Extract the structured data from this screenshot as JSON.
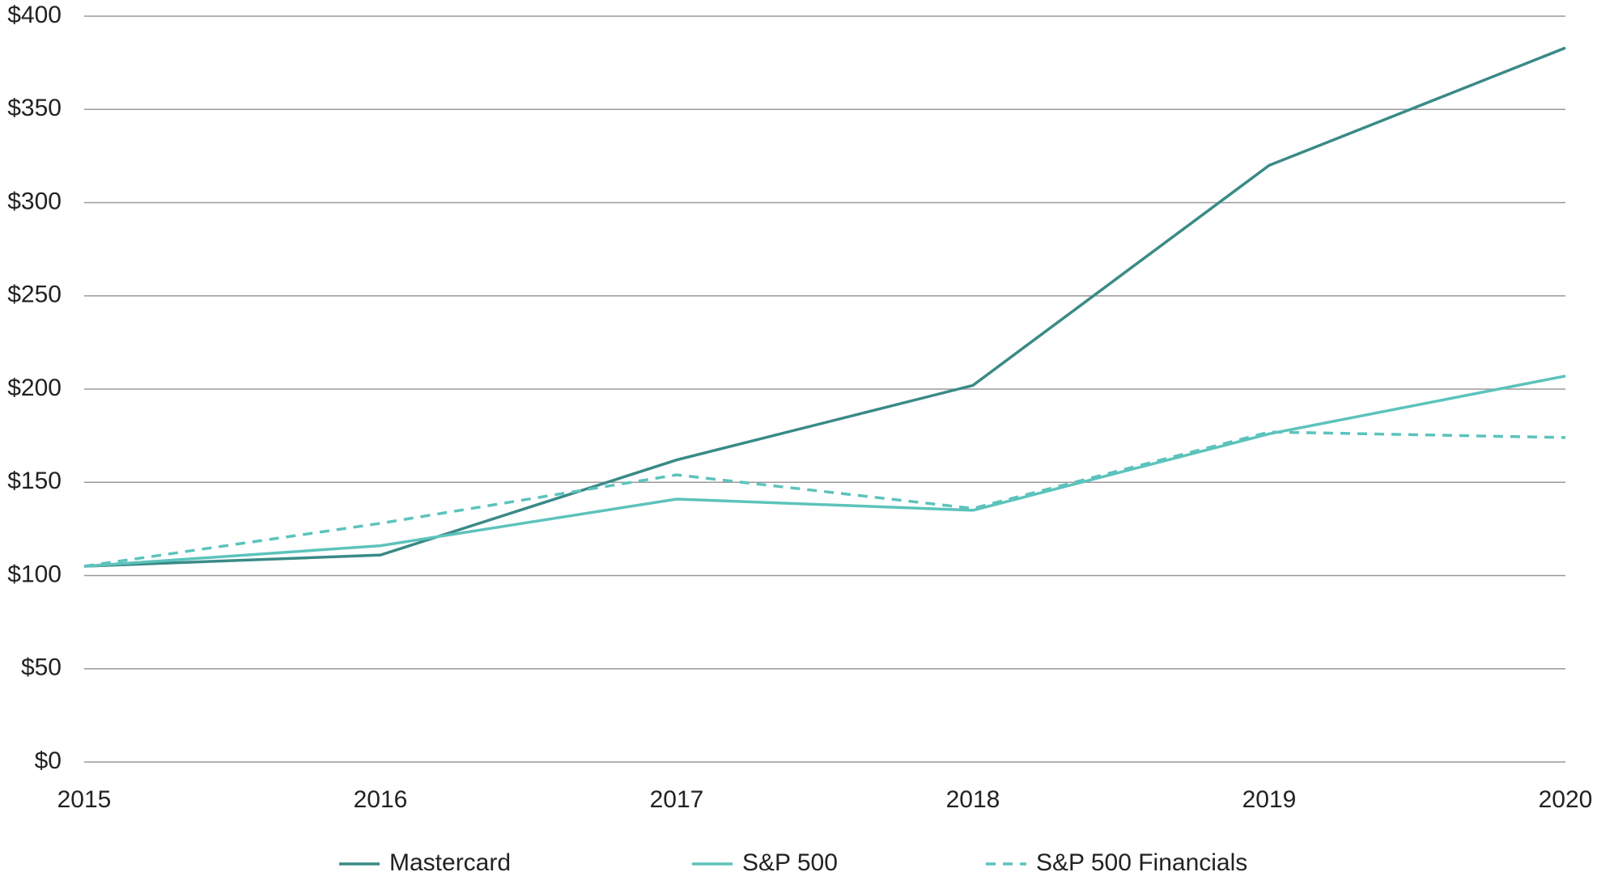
{
  "chart_data": {
    "type": "line",
    "x": [
      2015,
      2016,
      2017,
      2018,
      2019,
      2020
    ],
    "xlim": [
      2015,
      2020
    ],
    "xticks": [
      2015,
      2016,
      2017,
      2018,
      2019,
      2020
    ],
    "ylim": [
      0,
      400
    ],
    "yticks": [
      {
        "value": 0,
        "label": "$0"
      },
      {
        "value": 50,
        "label": "$50"
      },
      {
        "value": 100,
        "label": "$100"
      },
      {
        "value": 150,
        "label": "$150"
      },
      {
        "value": 200,
        "label": "$200"
      },
      {
        "value": 250,
        "label": "$250"
      },
      {
        "value": 300,
        "label": "$300"
      },
      {
        "value": 350,
        "label": "$350"
      },
      {
        "value": 400,
        "label": "$400"
      }
    ],
    "grid": true,
    "legend": "bottom",
    "series": [
      {
        "name": "Mastercard",
        "color": "#3a8a87",
        "style": "solid",
        "values": [
          105,
          111,
          162,
          202,
          320,
          383
        ]
      },
      {
        "name": "S&P 500",
        "color": "#5cc3bc",
        "style": "solid",
        "values": [
          105,
          116,
          141,
          135,
          176,
          207
        ]
      },
      {
        "name": "S&P 500 Financials",
        "color": "#5cc3bc",
        "style": "dashed",
        "values": [
          105,
          128,
          154,
          136,
          177,
          174
        ]
      }
    ]
  }
}
